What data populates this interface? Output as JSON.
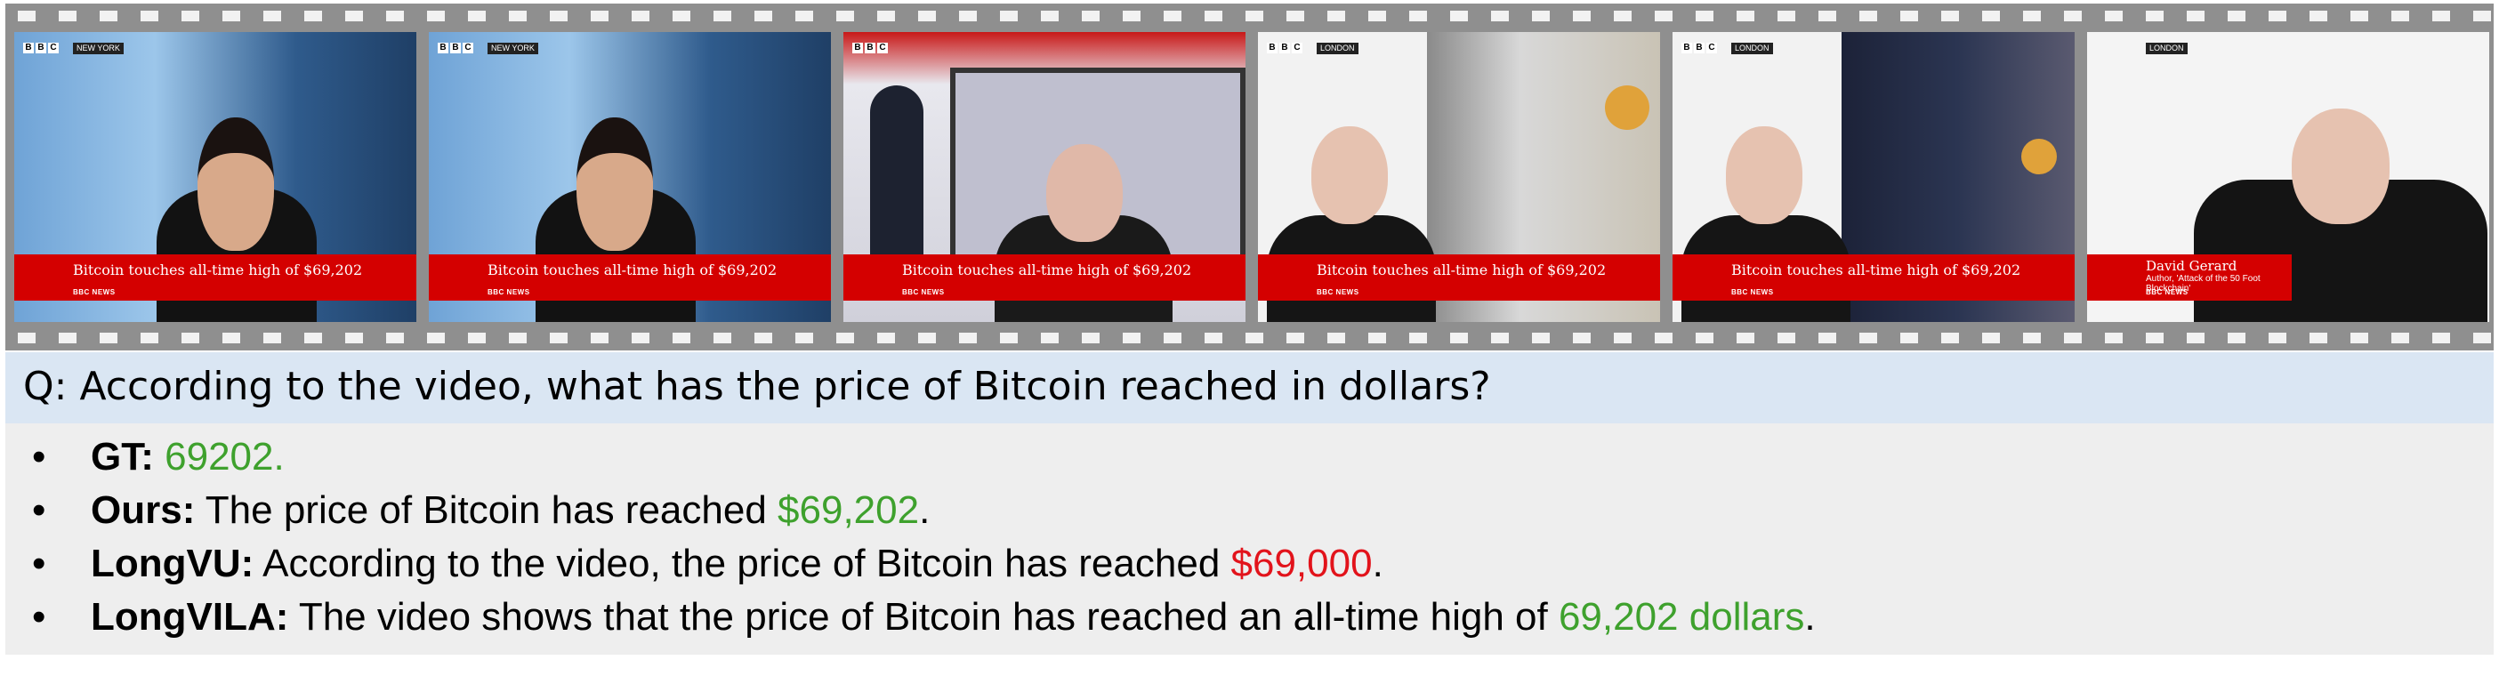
{
  "frames": [
    {
      "bbc": "BBC",
      "place": "NEW YORK",
      "headline": "Bitcoin touches all-time high of $69,202",
      "logo": "BBC NEWS"
    },
    {
      "bbc": "BBC",
      "place": "NEW YORK",
      "headline": "Bitcoin touches all-time high of $69,202",
      "logo": "BBC NEWS"
    },
    {
      "bbc": "BBC",
      "place": "",
      "headline": "Bitcoin touches all-time high of $69,202",
      "logo": "BBC NEWS"
    },
    {
      "bbc": "BBC",
      "place": "LONDON",
      "headline": "Bitcoin touches all-time high of $69,202",
      "logo": "BBC NEWS"
    },
    {
      "bbc": "BBC",
      "place": "LONDON",
      "headline": "Bitcoin touches all-time high of $69,202",
      "logo": "BBC NEWS"
    },
    {
      "bbc": "",
      "place": "LONDON",
      "name": "David Gerard",
      "role": "Author, 'Attack of the 50 Foot Blockchain'",
      "logo": "BBC NEWS"
    }
  ],
  "question": "Q: According to the video, what has the price of Bitcoin reached in dollars?",
  "answers": {
    "bullet": "•",
    "gt": {
      "label": "GT:",
      "text": "",
      "highlight": "69202.",
      "suffix": ""
    },
    "ours": {
      "label": "Ours:",
      "text": "The price of Bitcoin has reached ",
      "highlight": "$69,202",
      "suffix": "."
    },
    "longvu": {
      "label": "LongVU:",
      "text": "According to the video, the price of Bitcoin has reached ",
      "highlight": "$69,000",
      "suffix": "."
    },
    "longvila": {
      "label": "LongVILA:",
      "text": "The video shows that the price of Bitcoin has reached an all-time high of ",
      "highlight": "69,202 dollars",
      "suffix": "."
    }
  },
  "colors": {
    "correct": "#3ea12d",
    "wrong": "#e2131b",
    "banner": "#d40000",
    "question_bg": "#dae6f3"
  }
}
